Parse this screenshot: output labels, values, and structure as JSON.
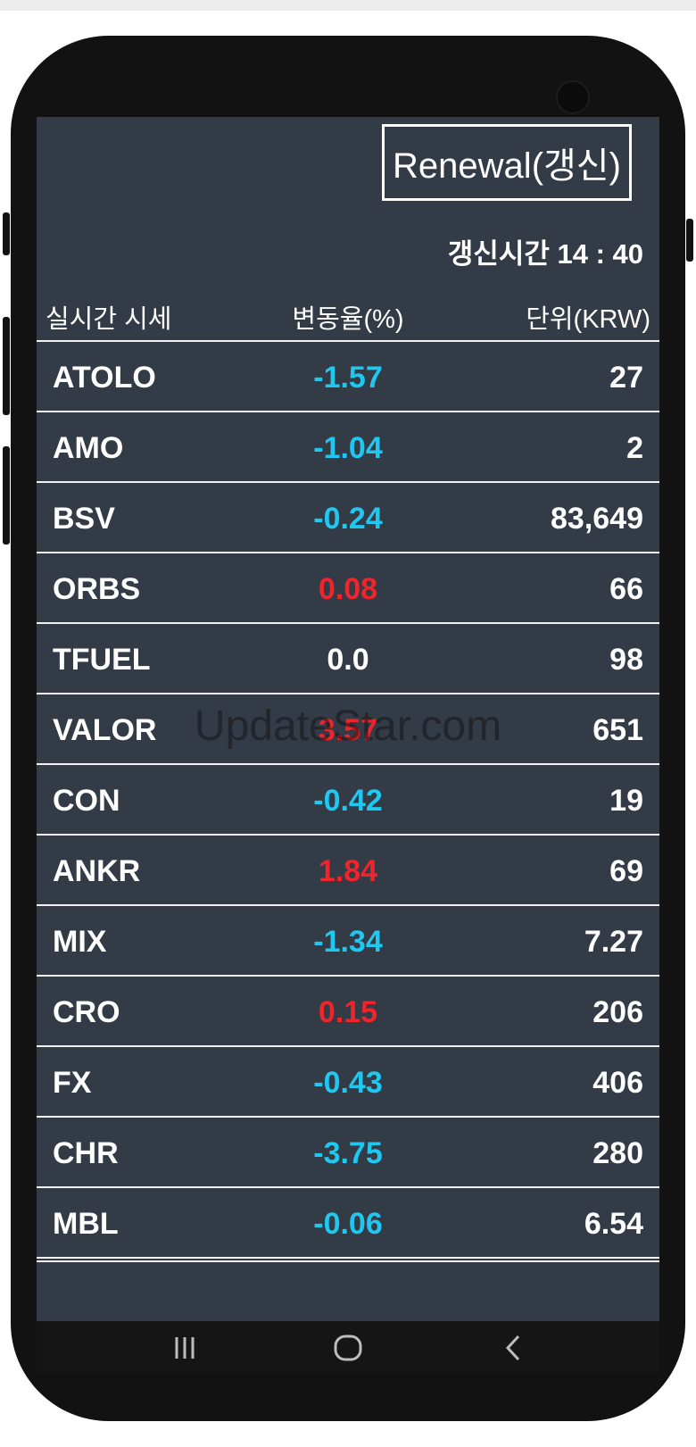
{
  "header": {
    "button": "Renewal(갱신)",
    "update_time": "갱신시간 14 : 40"
  },
  "table": {
    "columns": [
      "실시간 시세",
      "변동율(%)",
      "단위(KRW)"
    ],
    "rows": [
      [
        "ATOLO",
        "-1.57",
        "27"
      ],
      [
        "AMO",
        "-1.04",
        "2"
      ],
      [
        "BSV",
        "-0.24",
        "83,649"
      ],
      [
        "ORBS",
        "0.08",
        "66"
      ],
      [
        "TFUEL",
        "0.0",
        "98"
      ],
      [
        "VALOR",
        "3.57",
        "651"
      ],
      [
        "CON",
        "-0.42",
        "19"
      ],
      [
        "ANKR",
        "1.84",
        "69"
      ],
      [
        "MIX",
        "-1.34",
        "7.27"
      ],
      [
        "CRO",
        "0.15",
        "206"
      ],
      [
        "FX",
        "-0.43",
        "406"
      ],
      [
        "CHR",
        "-3.75",
        "280"
      ],
      [
        "MBL",
        "-0.06",
        "6.54"
      ]
    ]
  },
  "watermark": "UpdateStar.com"
}
